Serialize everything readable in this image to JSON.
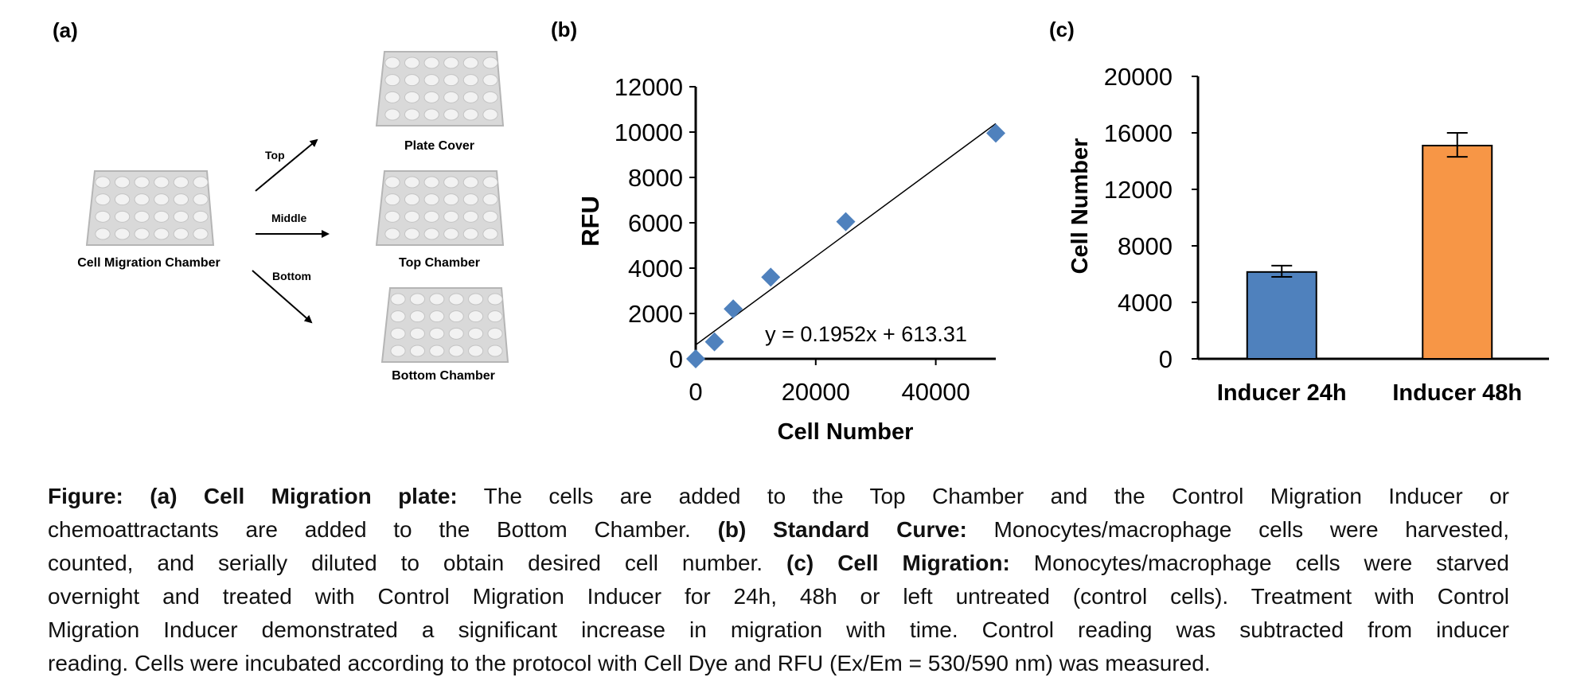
{
  "panel_a": {
    "label": "(a)",
    "source_plate": "Cell Migration Chamber",
    "arrows": [
      "Top",
      "Middle",
      "Bottom"
    ],
    "targets": [
      "Plate Cover",
      "Top Chamber",
      "Bottom Chamber"
    ],
    "plate_color": "#d9d9d9"
  },
  "chart_data": [
    {
      "panel_label": "(b)",
      "type": "scatter",
      "xlabel": "Cell Number",
      "ylabel": "RFU",
      "xlim": [
        0,
        50000
      ],
      "ylim": [
        0,
        12000
      ],
      "xticks": [
        0,
        20000,
        40000
      ],
      "yticks": [
        0,
        2000,
        4000,
        6000,
        8000,
        10000,
        12000
      ],
      "grid": false,
      "marker": "diamond",
      "color": "#4F81BD",
      "points": [
        {
          "x": 0,
          "y": 0
        },
        {
          "x": 3125,
          "y": 750
        },
        {
          "x": 6250,
          "y": 2200
        },
        {
          "x": 12500,
          "y": 3600
        },
        {
          "x": 25000,
          "y": 6050
        },
        {
          "x": 50000,
          "y": 9950
        }
      ],
      "trendline": {
        "slope": 0.1952,
        "intercept": 613.31,
        "label": "y = 0.1952x + 613.31"
      }
    },
    {
      "panel_label": "(c)",
      "type": "bar",
      "ylabel": "Cell Number",
      "xlabel": "",
      "ylim": [
        0,
        20000
      ],
      "yticks": [
        0,
        4000,
        8000,
        12000,
        16000,
        20000
      ],
      "grid": false,
      "categories": [
        "Inducer 24h",
        "Inducer 48h"
      ],
      "values": [
        6150,
        15100
      ],
      "error": [
        [
          5800,
          6600
        ],
        [
          14300,
          16000
        ]
      ],
      "colors": [
        "#4F81BD",
        "#F79646"
      ]
    }
  ],
  "caption": {
    "lines": [
      [
        {
          "b": true,
          "t": "Figure: (a) Cell Migration plate:"
        },
        {
          "b": false,
          "t": " The cells are added to the Top Chamber and the Control Migration Inducer or"
        }
      ],
      [
        {
          "b": false,
          "t": "chemoattractants are added to the Bottom Chamber. "
        },
        {
          "b": true,
          "t": "(b) Standard Curve:"
        },
        {
          "b": false,
          "t": " Monocytes/macrophage cells were harvested,"
        }
      ],
      [
        {
          "b": false,
          "t": "counted, and serially diluted to obtain desired cell number. "
        },
        {
          "b": true,
          "t": "(c) Cell Migration:"
        },
        {
          "b": false,
          "t": " Monocytes/macrophage cells were starved"
        }
      ],
      [
        {
          "b": false,
          "t": "overnight and treated with Control Migration Inducer for 24h, 48h or left untreated (control cells). Treatment with Control"
        }
      ],
      [
        {
          "b": false,
          "t": "Migration Inducer demonstrated a significant increase in migration with time. Control reading was subtracted from inducer"
        }
      ],
      [
        {
          "b": false,
          "t": "reading. Cells were incubated according to the protocol with Cell Dye and RFU (Ex/Em = 530/590 nm) was measured."
        }
      ]
    ]
  }
}
